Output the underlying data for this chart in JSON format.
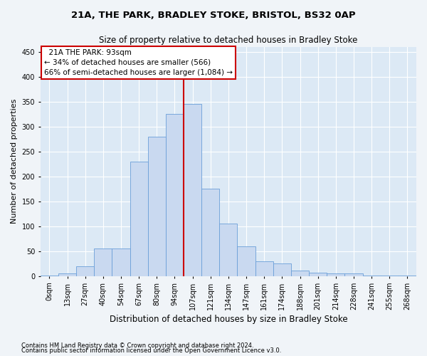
{
  "title1": "21A, THE PARK, BRADLEY STOKE, BRISTOL, BS32 0AP",
  "title2": "Size of property relative to detached houses in Bradley Stoke",
  "xlabel": "Distribution of detached houses by size in Bradley Stoke",
  "ylabel": "Number of detached properties",
  "footnote1": "Contains HM Land Registry data © Crown copyright and database right 2024.",
  "footnote2": "Contains public sector information licensed under the Open Government Licence v3.0.",
  "categories": [
    "0sqm",
    "13sqm",
    "27sqm",
    "40sqm",
    "54sqm",
    "67sqm",
    "80sqm",
    "94sqm",
    "107sqm",
    "121sqm",
    "134sqm",
    "147sqm",
    "161sqm",
    "174sqm",
    "188sqm",
    "201sqm",
    "214sqm",
    "228sqm",
    "241sqm",
    "255sqm",
    "268sqm"
  ],
  "values": [
    2,
    5,
    20,
    55,
    55,
    230,
    280,
    325,
    345,
    175,
    105,
    60,
    30,
    25,
    12,
    7,
    6,
    5,
    2,
    2,
    2
  ],
  "bar_color": "#c9d9f0",
  "bar_edge_color": "#6a9fd8",
  "marker_line_color": "#cc0000",
  "annotation_box_color": "#cc0000",
  "marker_label": "21A THE PARK: 93sqm",
  "marker_pct_smaller": "34% of detached houses are smaller (566)",
  "marker_pct_larger": "66% of semi-detached houses are larger (1,084)",
  "ylim": [
    0,
    460
  ],
  "yticks": [
    0,
    50,
    100,
    150,
    200,
    250,
    300,
    350,
    400,
    450
  ],
  "bg_color": "#dce9f5",
  "grid_color": "#ffffff",
  "fig_bg_color": "#f0f4f8",
  "title1_fontsize": 9.5,
  "title2_fontsize": 8.5,
  "xlabel_fontsize": 8.5,
  "ylabel_fontsize": 8,
  "tick_fontsize": 7,
  "footnote_fontsize": 6,
  "annotation_fontsize": 7.5
}
